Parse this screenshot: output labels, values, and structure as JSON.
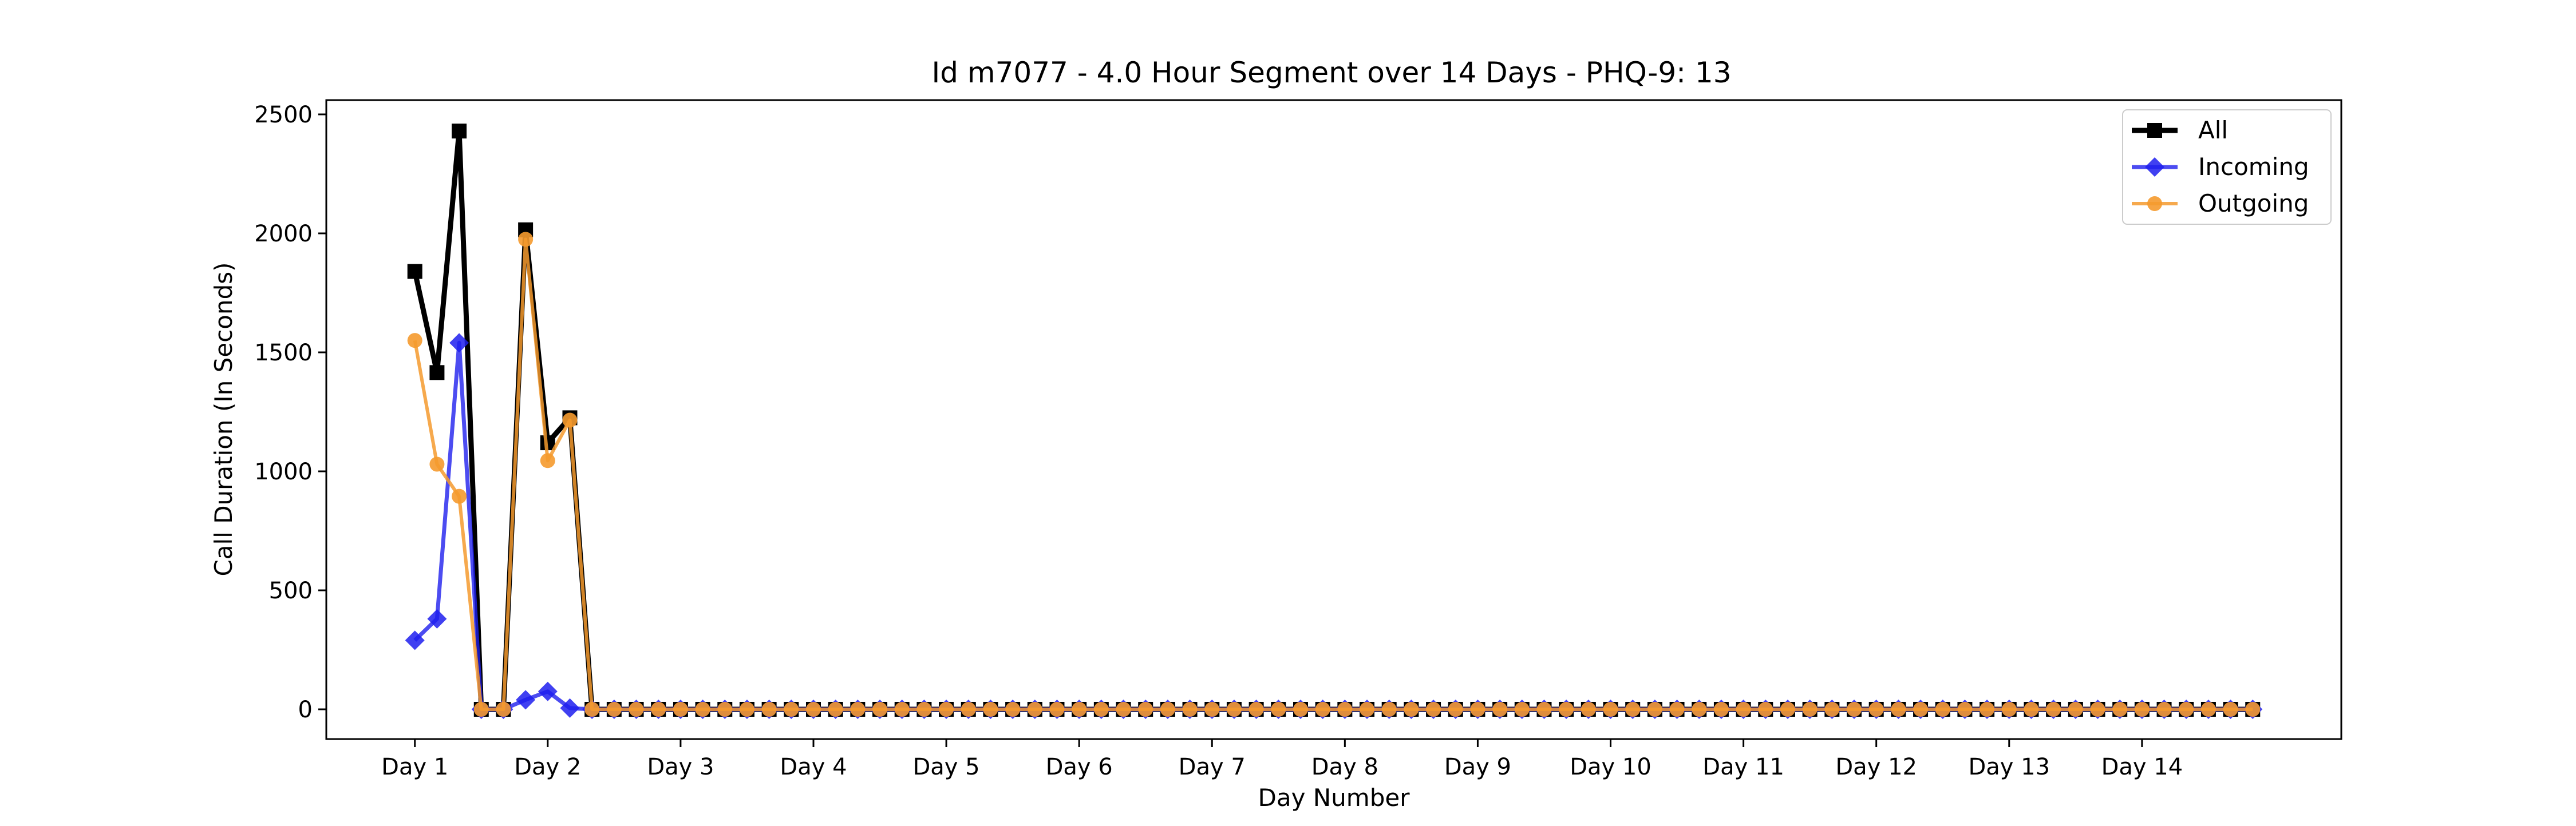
{
  "chart_data": {
    "type": "line",
    "title": "Id m7077 - 4.0 Hour Segment over 14 Days - PHQ-9: 13",
    "xlabel": "Day Number",
    "ylabel": "Call Duration (In Seconds)",
    "x_tick_labels": [
      "Day 1",
      "Day 2",
      "Day 3",
      "Day 4",
      "Day 5",
      "Day 6",
      "Day 7",
      "Day 8",
      "Day 9",
      "Day 10",
      "Day 11",
      "Day 12",
      "Day 13",
      "Day 14"
    ],
    "x_ticks": [
      0,
      6,
      12,
      18,
      24,
      30,
      36,
      42,
      48,
      54,
      60,
      66,
      72,
      78
    ],
    "y_ticks": [
      0,
      500,
      1000,
      1500,
      2000,
      2500
    ],
    "xlim": [
      -4,
      87
    ],
    "ylim": [
      -125,
      2560
    ],
    "grid": false,
    "legend_position": "top-right",
    "num_points": 84,
    "series": [
      {
        "name": "All",
        "color": "#000000",
        "marker": "square",
        "values_head": [
          1840,
          1415,
          2430,
          0,
          0,
          2015,
          1120,
          1225
        ]
      },
      {
        "name": "Incoming",
        "color": "#1f1fee",
        "marker": "diamond",
        "values_head": [
          290,
          380,
          1540,
          0,
          0,
          40,
          75,
          5
        ]
      },
      {
        "name": "Outgoing",
        "color": "#f59a2e",
        "marker": "circle",
        "values_head": [
          1550,
          1030,
          895,
          0,
          0,
          1975,
          1045,
          1215
        ]
      }
    ],
    "values_tail_fill": 0
  }
}
